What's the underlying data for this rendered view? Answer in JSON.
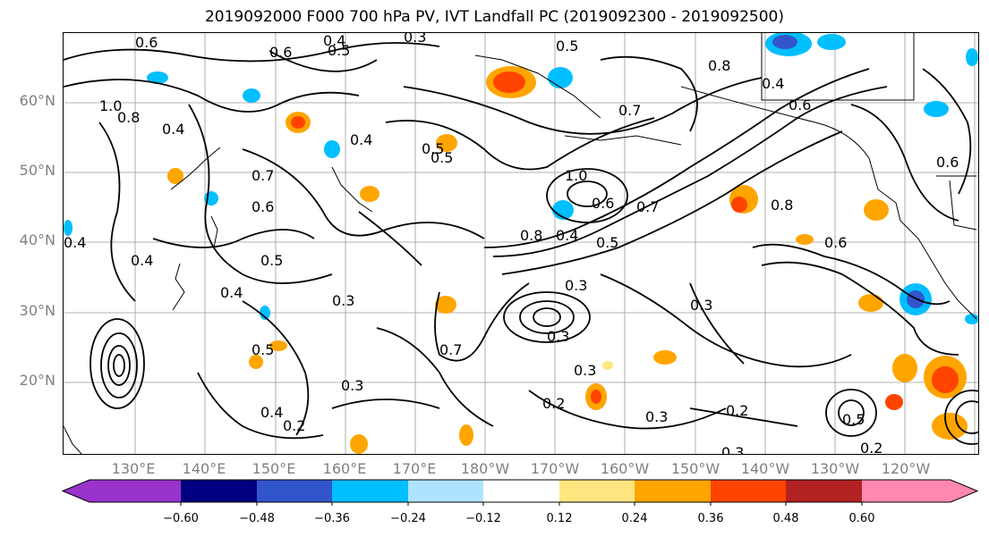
{
  "title": "2019092000 F000 700 hPa PV, IVT Landfall PC (2019092300 - 2019092500)",
  "lat_labels": [
    "60°N",
    "50°N",
    "40°N",
    "30°N",
    "20°N"
  ],
  "lon_labels": [
    "130°E",
    "140°E",
    "150°E",
    "160°E",
    "170°E",
    "180°W",
    "170°W",
    "160°W",
    "150°W",
    "140°W",
    "130°W",
    "120°W"
  ],
  "colorbar": {
    "colors": [
      "#9933cc",
      "#000080",
      "#3355cc",
      "#00bfff",
      "#aee3ff",
      "#ffffff",
      "#ffe680",
      "#ffa500",
      "#ff4400",
      "#b22222",
      "#ff88b0"
    ],
    "tick_labels": [
      "−0.60",
      "−0.48",
      "−0.36",
      "−0.24",
      "−0.12",
      "0.12",
      "0.24",
      "0.36",
      "0.48",
      "0.60"
    ]
  },
  "contour_labels": [
    "0.6",
    "0.4",
    "0.5",
    "0.5",
    "0.6",
    "0.8",
    "0.4",
    "0.6",
    "1.0",
    "0.8",
    "0.4",
    "0.7",
    "0.5",
    "0.5",
    "0.4",
    "0.7",
    "0.6",
    "0.4",
    "1.0",
    "0.8",
    "0.5",
    "0.6",
    "0.8",
    "0.7",
    "0.5",
    "0.3",
    "0.4",
    "0.6",
    "0.4",
    "0.4",
    "0.3",
    "0.5",
    "0.3",
    "0.7",
    "0.3",
    "0.3",
    "0.4",
    "0.3",
    "0.2",
    "0.3",
    "0.2",
    "0.5",
    "0.2",
    "0.3",
    "0.2",
    "0.3",
    "0.6"
  ]
}
